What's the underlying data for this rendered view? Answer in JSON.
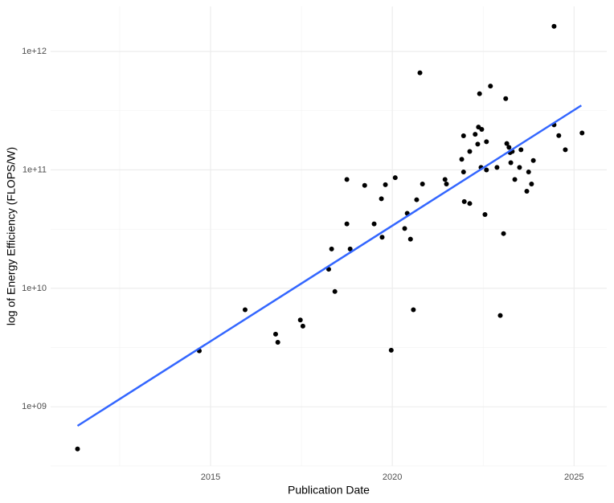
{
  "chart_data": {
    "type": "scatter",
    "xlabel": "Publication Date",
    "ylabel": "log of Energy Efficiency (FLOPS/W)",
    "yscale": "log",
    "grid": true,
    "color": "#000000",
    "xlim": [
      2010.6,
      2025.9
    ],
    "xticks": [
      2015,
      2020,
      2025
    ],
    "ylim": [
      316000000,
      2400000000000
    ],
    "yticks": [
      {
        "value": 1000000000,
        "label": "1e+09"
      },
      {
        "value": 10000000000,
        "label": "1e+10"
      },
      {
        "value": 100000000000,
        "label": "1e+11"
      },
      {
        "value": 1000000000000,
        "label": "1e+12"
      }
    ],
    "x": [
      2011.34,
      2014.69,
      2015.95,
      2016.79,
      2016.85,
      2017.47,
      2017.54,
      2018.25,
      2018.33,
      2018.42,
      2018.75,
      2018.75,
      2018.84,
      2019.24,
      2019.5,
      2019.7,
      2019.72,
      2019.81,
      2019.97,
      2020.08,
      2020.34,
      2020.41,
      2020.5,
      2020.58,
      2020.67,
      2020.76,
      2020.83,
      2021.45,
      2021.49,
      2021.91,
      2021.96,
      2021.96,
      2021.98,
      2022.13,
      2022.13,
      2022.28,
      2022.35,
      2022.37,
      2022.4,
      2022.44,
      2022.46,
      2022.55,
      2022.59,
      2022.59,
      2022.7,
      2022.88,
      2022.97,
      2023.06,
      2023.12,
      2023.15,
      2023.21,
      2023.24,
      2023.26,
      2023.3,
      2023.37,
      2023.5,
      2023.54,
      2023.7,
      2023.75,
      2023.83,
      2023.88,
      2024.45,
      2024.45,
      2024.58,
      2024.76,
      2025.22
    ],
    "values": [
      440000000,
      2970000000,
      6600000000,
      4100000000,
      3500000000,
      5400000000,
      4800000000,
      14500000000,
      21500000000,
      9400000000,
      83000000000,
      35000000000,
      21500000000,
      74000000000,
      35000000000,
      57000000000,
      27000000000,
      75000000000,
      3000000000,
      86000000000,
      32000000000,
      43000000000,
      26000000000,
      6600000000,
      56000000000,
      660000000000,
      76000000000,
      83000000000,
      76000000000,
      123000000000,
      194000000000,
      96000000000,
      54000000000,
      52000000000,
      143000000000,
      200000000000,
      165000000000,
      230000000000,
      440000000000,
      105000000000,
      220000000000,
      42000000000,
      173000000000,
      100000000000,
      510000000000,
      105000000000,
      5900000000,
      29000000000,
      400000000000,
      167000000000,
      155000000000,
      140000000000,
      115000000000,
      143000000000,
      83000000000,
      105000000000,
      148000000000,
      66000000000,
      96000000000,
      76000000000,
      120000000000,
      1630000000000,
      240000000000,
      195000000000,
      148000000000,
      205000000000
    ],
    "trend": {
      "x": [
        2011.34,
        2025.2
      ],
      "values": [
        690000000,
        350000000000
      ],
      "color": "#3366ff"
    }
  }
}
